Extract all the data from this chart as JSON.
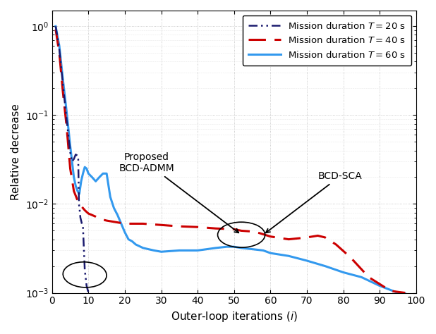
{
  "title": "",
  "xlabel": "Outer-loop iterations ($i$)",
  "ylabel": "Relative decrease",
  "xlim": [
    0,
    100
  ],
  "legend_labels": [
    "Mission duration $T = 20$ s",
    "Mission duration $T = 40$ s",
    "Mission duration $T = 60$ s"
  ],
  "colors": {
    "T20": "#1a1a6e",
    "T40": "#cc0000",
    "T60": "#3399ee"
  },
  "grid_color": "#aaaaaa",
  "background_color": "#ffffff",
  "T20_x": [
    1,
    2,
    3,
    4,
    5,
    5.5,
    6,
    6.5,
    7,
    7.2,
    7.4,
    7.6,
    7.8,
    8.0,
    8.2,
    8.5,
    9,
    9.5,
    10,
    10.2
  ],
  "T20_y": [
    1.0,
    0.55,
    0.22,
    0.09,
    0.038,
    0.03,
    0.032,
    0.036,
    0.035,
    0.032,
    0.01,
    0.0085,
    0.007,
    0.0065,
    0.006,
    0.0055,
    0.0018,
    0.0012,
    0.001,
    0.00098
  ],
  "T40_x": [
    1,
    2,
    3,
    4,
    5,
    6,
    7,
    8,
    9,
    10,
    11,
    12,
    13,
    15,
    18,
    20,
    25,
    30,
    35,
    40,
    45,
    50,
    52,
    55,
    57,
    60,
    65,
    70,
    73,
    75,
    78,
    82,
    87,
    93,
    97
  ],
  "T40_y": [
    0.92,
    0.5,
    0.18,
    0.075,
    0.025,
    0.014,
    0.011,
    0.0095,
    0.0085,
    0.0078,
    0.0075,
    0.0072,
    0.0068,
    0.0065,
    0.0062,
    0.006,
    0.006,
    0.0058,
    0.0056,
    0.0055,
    0.0053,
    0.0052,
    0.005,
    0.0049,
    0.0047,
    0.0043,
    0.004,
    0.0042,
    0.0044,
    0.0042,
    0.0035,
    0.0025,
    0.0015,
    0.00105,
    0.001
  ],
  "T60_x": [
    1,
    2,
    3,
    4,
    5,
    5.5,
    6,
    6.5,
    7,
    7.5,
    8,
    8.5,
    9,
    9.5,
    10,
    11,
    12,
    13,
    14,
    15,
    16,
    17,
    18,
    19,
    20,
    21,
    22,
    23,
    25,
    28,
    30,
    35,
    40,
    45,
    48,
    50,
    52,
    55,
    58,
    60,
    65,
    70,
    75,
    80,
    85,
    90,
    95,
    97
  ],
  "T60_y": [
    1.0,
    0.6,
    0.25,
    0.11,
    0.045,
    0.03,
    0.02,
    0.016,
    0.014,
    0.013,
    0.018,
    0.022,
    0.026,
    0.025,
    0.022,
    0.02,
    0.018,
    0.02,
    0.022,
    0.022,
    0.012,
    0.009,
    0.0075,
    0.006,
    0.0048,
    0.004,
    0.0038,
    0.0035,
    0.0032,
    0.003,
    0.0029,
    0.003,
    0.003,
    0.0032,
    0.0033,
    0.0033,
    0.0032,
    0.0031,
    0.003,
    0.0028,
    0.0026,
    0.0023,
    0.002,
    0.0017,
    0.0015,
    0.0012,
    0.001,
    0.00098
  ]
}
